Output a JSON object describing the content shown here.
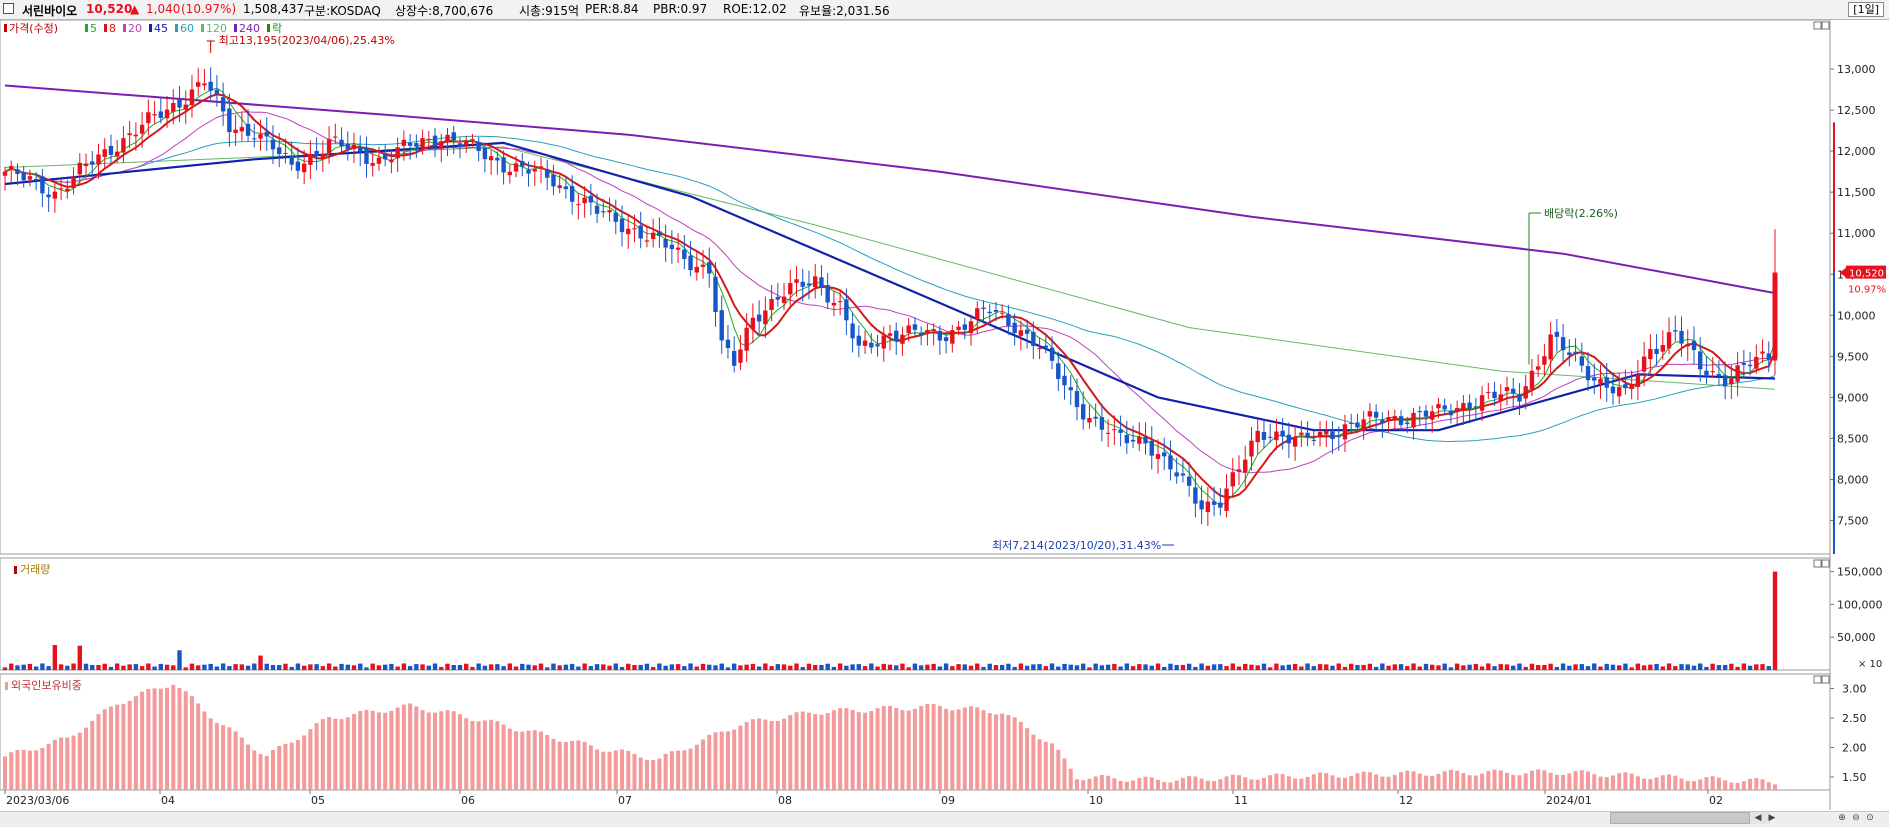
{
  "header": {
    "name": "서린바이오",
    "price": "10,520",
    "change_arrow": "▲",
    "change": "1,040",
    "change_pct": "(10.97%)",
    "volume": "1,508,437",
    "market": "구분:KOSDAQ",
    "shares": "상장수:8,700,676",
    "mcap": "시총:915억",
    "per": "PER:8.84",
    "pbr": "PBR:0.97",
    "roe": "ROE:12.02",
    "retention": "유보율:2,031.56",
    "period": "[1일]"
  },
  "colors": {
    "up": "#e8101e",
    "down": "#1756c8",
    "ma5": "#22aa22",
    "ma8": "#d11a1a",
    "ma20": "#c040c0",
    "ma45": "#1122aa",
    "ma60": "#2aa0c0",
    "ma120": "#66b866",
    "ma240": "#7a1fb0",
    "foreign": "#f49a9a"
  },
  "price_panel": {
    "legend": [
      {
        "label": "가격(수정)",
        "color": "#c00000"
      },
      {
        "label": "5",
        "color": "#22aa22"
      },
      {
        "label": "8",
        "color": "#d11a1a"
      },
      {
        "label": "20",
        "color": "#c040c0"
      },
      {
        "label": "45",
        "color": "#1122aa"
      },
      {
        "label": "60",
        "color": "#2aa0c0"
      },
      {
        "label": "120",
        "color": "#66b866"
      },
      {
        "label": "240",
        "color": "#7a1fb0"
      },
      {
        "label": "락",
        "color": "#1a8a1a"
      }
    ],
    "high_annotation": "최고13,195(2023/04/06),25.43%",
    "low_annotation": "최저7,214(2023/10/20),31.43%",
    "dividend_annotation": "배당락(2.26%)",
    "current_price_tag": "10,520",
    "current_pct_tag": "10.97%",
    "y_ticks": [
      "13,000",
      "12,500",
      "12,000",
      "11,500",
      "11,000",
      "10,500",
      "10,000",
      "9,500",
      "9,000",
      "8,500",
      "8,000",
      "7,500"
    ]
  },
  "volume_panel": {
    "title": "거래량",
    "y_ticks": [
      "150,000",
      "100,000",
      "50,000"
    ],
    "unit": "× 10"
  },
  "foreign_panel": {
    "title": "외국인보유비중",
    "y_ticks": [
      "3.00",
      "2.50",
      "2.00",
      "1.50"
    ]
  },
  "x_axis_labels": [
    "2023/03/06",
    "04",
    "05",
    "06",
    "07",
    "08",
    "09",
    "10",
    "11",
    "12",
    "2024/01",
    "02"
  ],
  "chart_data": {
    "type": "candlestick",
    "title": "서린바이오",
    "x_label_dates": [
      "2023/03/06",
      "04",
      "05",
      "06",
      "07",
      "08",
      "09",
      "10",
      "11",
      "12",
      "2024/01",
      "02"
    ],
    "price_ylim": [
      7214,
      13195
    ],
    "volume_ylim": [
      0,
      160000
    ],
    "foreign_ylim": [
      1.2,
      3.2
    ],
    "anchors_close": [
      [
        0,
        11750
      ],
      [
        8,
        11500
      ],
      [
        18,
        12100
      ],
      [
        26,
        12500
      ],
      [
        32,
        12850
      ],
      [
        36,
        12300
      ],
      [
        40,
        12250
      ],
      [
        46,
        11800
      ],
      [
        52,
        12100
      ],
      [
        60,
        11900
      ],
      [
        70,
        12200
      ],
      [
        80,
        11850
      ],
      [
        88,
        11650
      ],
      [
        95,
        11250
      ],
      [
        101,
        11050
      ],
      [
        108,
        10750
      ],
      [
        113,
        10550
      ],
      [
        115,
        9600
      ],
      [
        117,
        9400
      ],
      [
        120,
        10000
      ],
      [
        126,
        10300
      ],
      [
        130,
        10450
      ],
      [
        134,
        10100
      ],
      [
        137,
        9550
      ],
      [
        142,
        9800
      ],
      [
        150,
        9750
      ],
      [
        158,
        10050
      ],
      [
        162,
        9900
      ],
      [
        166,
        9600
      ],
      [
        170,
        9150
      ],
      [
        174,
        8750
      ],
      [
        178,
        8500
      ],
      [
        183,
        8500
      ],
      [
        186,
        8200
      ],
      [
        189,
        7950
      ],
      [
        192,
        7700
      ],
      [
        195,
        7750
      ],
      [
        198,
        8100
      ],
      [
        201,
        8550
      ],
      [
        203,
        8600
      ],
      [
        208,
        8450
      ],
      [
        215,
        8650
      ],
      [
        222,
        8750
      ],
      [
        230,
        8800
      ],
      [
        235,
        8950
      ],
      [
        243,
        9050
      ],
      [
        248,
        9700
      ],
      [
        252,
        9450
      ],
      [
        256,
        9200
      ],
      [
        260,
        9000
      ],
      [
        264,
        9600
      ],
      [
        268,
        9800
      ],
      [
        272,
        9350
      ],
      [
        276,
        9250
      ],
      [
        280,
        9400
      ],
      [
        283,
        9480
      ],
      [
        284,
        10520
      ]
    ],
    "moving_averages": {
      "ma240_points": [
        [
          0,
          12800
        ],
        [
          60,
          12450
        ],
        [
          100,
          12200
        ],
        [
          150,
          11750
        ],
        [
          200,
          11200
        ],
        [
          250,
          10750
        ],
        [
          284,
          10270
        ]
      ],
      "ma45_points": [
        [
          0,
          11600
        ],
        [
          40,
          11900
        ],
        [
          80,
          12100
        ],
        [
          110,
          11450
        ],
        [
          150,
          10150
        ],
        [
          185,
          9000
        ],
        [
          210,
          8600
        ],
        [
          230,
          8600
        ],
        [
          262,
          9280
        ],
        [
          284,
          9230
        ]
      ],
      "ma120_points": [
        [
          0,
          11800
        ],
        [
          80,
          12050
        ],
        [
          130,
          11100
        ],
        [
          190,
          9850
        ],
        [
          240,
          9320
        ],
        [
          284,
          9100
        ]
      ]
    },
    "volume_peaks": [
      {
        "x": 8,
        "value": 38000
      },
      {
        "x": 12,
        "value": 37000
      },
      {
        "x": 28,
        "value": 30000
      },
      {
        "x": 284,
        "value": 150000
      }
    ],
    "foreign_ratio_points": [
      [
        0,
        1.85
      ],
      [
        10,
        2.15
      ],
      [
        18,
        2.75
      ],
      [
        27,
        3.1
      ],
      [
        34,
        2.45
      ],
      [
        42,
        1.85
      ],
      [
        52,
        2.5
      ],
      [
        65,
        2.7
      ],
      [
        73,
        2.55
      ],
      [
        85,
        2.25
      ],
      [
        95,
        2.0
      ],
      [
        105,
        1.8
      ],
      [
        118,
        2.4
      ],
      [
        130,
        2.6
      ],
      [
        140,
        2.65
      ],
      [
        150,
        2.7
      ],
      [
        160,
        2.6
      ],
      [
        168,
        2.05
      ],
      [
        172,
        1.5
      ],
      [
        185,
        1.45
      ],
      [
        200,
        1.5
      ],
      [
        230,
        1.57
      ],
      [
        250,
        1.58
      ],
      [
        270,
        1.48
      ],
      [
        284,
        1.42
      ]
    ]
  }
}
